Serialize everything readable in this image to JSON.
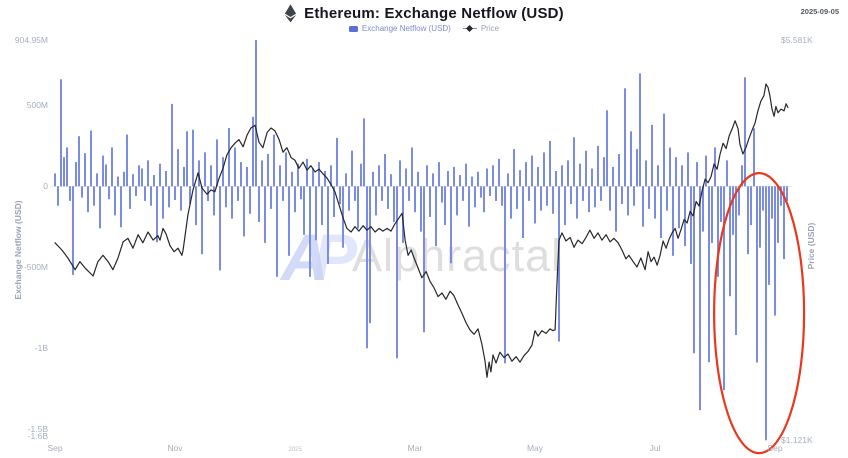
{
  "header": {
    "title": "Ethereum: Exchange Netflow (USD)",
    "date": "2025-09-05"
  },
  "legend": {
    "netflow_label": "Exchange Netflow (USD)",
    "price_label": "Price"
  },
  "watermark": {
    "logo": "AP",
    "text": "Alphractal"
  },
  "axes": {
    "left_title": "Exchange Netflow (USD)",
    "right_title": "Price (USD)",
    "left_ticks": [
      {
        "label": "904.95M",
        "value": 904.95
      },
      {
        "label": "500M",
        "value": 500
      },
      {
        "label": "0",
        "value": 0
      },
      {
        "label": "-500M",
        "value": -500
      },
      {
        "label": "-1B",
        "value": -1000
      },
      {
        "label": "-1.5B",
        "value": -1500
      },
      {
        "label": "-1.6B",
        "value": -1600
      }
    ],
    "right_ticks": [
      {
        "label": "$5.581K",
        "price_k": 5.581
      },
      {
        "label": "$1.121K",
        "price_k": 1.121
      }
    ],
    "x_ticks": [
      {
        "label": "Sep",
        "index": 0
      },
      {
        "label": "Nov",
        "index": 40
      },
      {
        "label": "2025",
        "index": 80,
        "year": true
      },
      {
        "label": "Mar",
        "index": 120
      },
      {
        "label": "May",
        "index": 160
      },
      {
        "label": "Jul",
        "index": 200
      },
      {
        "label": "Sep",
        "index": 240
      }
    ]
  },
  "chart_data": {
    "type": "bar+line",
    "title": "Ethereum: Exchange Netflow (USD)",
    "x_range": [
      "Sep 2024",
      "Sep 2025"
    ],
    "ylim_netflow_musd": [
      -1600,
      904.95
    ],
    "price_axis_kusd": [
      1.121,
      5.581
    ],
    "legend_position": "top-center",
    "grid": false,
    "series": [
      {
        "name": "Exchange Netflow (USD)",
        "type": "bar",
        "unit": "USD millions",
        "color": "#7A8CE3",
        "values": [
          80,
          -120,
          662,
          180,
          240,
          -90,
          -548,
          150,
          310,
          -70,
          205,
          -160,
          345,
          -120,
          80,
          -260,
          190,
          135,
          -80,
          240,
          -180,
          60,
          -253,
          90,
          320,
          -140,
          75,
          -60,
          130,
          110,
          -90,
          160,
          -120,
          70,
          -346,
          140,
          -200,
          95,
          -130,
          510,
          -85,
          230,
          -150,
          120,
          340,
          -110,
          350,
          -240,
          160,
          -420,
          210,
          -90,
          130,
          -180,
          290,
          -520,
          180,
          -130,
          360,
          -200,
          240,
          -90,
          150,
          -310,
          120,
          -170,
          430,
          905,
          -220,
          160,
          -350,
          200,
          -140,
          320,
          -560,
          130,
          -90,
          210,
          -430,
          90,
          -160,
          140,
          -80,
          -300,
          170,
          -560,
          110,
          -334,
          150,
          -240,
          95,
          -480,
          130,
          -190,
          300,
          -110,
          -380,
          80,
          -150,
          220,
          -90,
          -260,
          140,
          420,
          -1002,
          -847,
          90,
          -180,
          130,
          -90,
          200,
          -140,
          75,
          -220,
          -1064,
          160,
          -350,
          110,
          -90,
          240,
          -160,
          90,
          -280,
          -903,
          130,
          -190,
          80,
          -370,
          150,
          -100,
          -240,
          95,
          -476,
          120,
          -180,
          70,
          -90,
          140,
          -250,
          60,
          -130,
          90,
          -70,
          -160,
          110,
          -60,
          130,
          -90,
          170,
          -120,
          -1095,
          80,
          -200,
          230,
          -140,
          100,
          -320,
          150,
          -90,
          190,
          -230,
          120,
          -150,
          210,
          -120,
          280,
          -170,
          95,
          -960,
          130,
          -240,
          160,
          -110,
          303,
          -200,
          140,
          -90,
          220,
          -160,
          110,
          -130,
          250,
          -90,
          180,
          470,
          -150,
          120,
          -280,
          200,
          -110,
          606,
          -180,
          340,
          -120,
          230,
          699,
          -250,
          160,
          -140,
          380,
          -200,
          130,
          -320,
          450,
          -150,
          240,
          -430,
          180,
          -260,
          130,
          -370,
          210,
          -480,
          -1033,
          150,
          -1385,
          -280,
          190,
          -1088,
          -350,
          240,
          -560,
          -220,
          -1261,
          160,
          -680,
          -300,
          -920,
          -180,
          130,
          674,
          -420,
          -240,
          359,
          -1090,
          -380,
          -150,
          -1571,
          -610,
          -200,
          -800,
          -350,
          -120,
          -450,
          -90
        ]
      },
      {
        "name": "Price",
        "type": "line",
        "unit": "USD thousands",
        "color": "#26282c",
        "points": [
          [
            0,
            3.32
          ],
          [
            2.3,
            3.24
          ],
          [
            4.3,
            3.15
          ],
          [
            6.7,
            3.02
          ],
          [
            8.3,
            3.11
          ],
          [
            10,
            3.04
          ],
          [
            12.7,
            2.95
          ],
          [
            14.3,
            3.11
          ],
          [
            16,
            3.18
          ],
          [
            17.7,
            3.11
          ],
          [
            19.3,
            3.02
          ],
          [
            21,
            3.15
          ],
          [
            22.7,
            3.33
          ],
          [
            24.3,
            3.37
          ],
          [
            26,
            3.26
          ],
          [
            27.7,
            3.41
          ],
          [
            29.3,
            3.32
          ],
          [
            31,
            3.44
          ],
          [
            32.7,
            3.35
          ],
          [
            34.3,
            3.4
          ],
          [
            35,
            3.35
          ],
          [
            36,
            3.48
          ],
          [
            37,
            3.42
          ],
          [
            38.3,
            3.29
          ],
          [
            39.7,
            3.22
          ],
          [
            41,
            3.26
          ],
          [
            42.3,
            3.18
          ],
          [
            42.7,
            3.24
          ],
          [
            44.3,
            3.63
          ],
          [
            46,
            3.91
          ],
          [
            47.7,
            4.1
          ],
          [
            49,
            3.93
          ],
          [
            50.7,
            3.86
          ],
          [
            52,
            3.91
          ],
          [
            53.3,
            3.89
          ],
          [
            54.7,
            4.04
          ],
          [
            56,
            4.15
          ],
          [
            57.3,
            4.3
          ],
          [
            58.7,
            4.38
          ],
          [
            60,
            4.43
          ],
          [
            61.3,
            4.47
          ],
          [
            62.7,
            4.39
          ],
          [
            64,
            4.52
          ],
          [
            65.3,
            4.6
          ],
          [
            66.7,
            4.63
          ],
          [
            68,
            4.44
          ],
          [
            69.3,
            4.38
          ],
          [
            70.7,
            4.55
          ],
          [
            72,
            4.6
          ],
          [
            73.3,
            4.57
          ],
          [
            74.7,
            4.47
          ],
          [
            76,
            4.33
          ],
          [
            77.3,
            4.38
          ],
          [
            78.7,
            4.27
          ],
          [
            80,
            4.24
          ],
          [
            81.3,
            4.15
          ],
          [
            82.7,
            4.22
          ],
          [
            84,
            4.13
          ],
          [
            85.3,
            4.18
          ],
          [
            86.7,
            4.11
          ],
          [
            88,
            4.14
          ],
          [
            89.3,
            4.09
          ],
          [
            90.7,
            4.04
          ],
          [
            92,
            3.97
          ],
          [
            93.3,
            3.89
          ],
          [
            94.7,
            3.74
          ],
          [
            96,
            3.6
          ],
          [
            97.3,
            3.48
          ],
          [
            98.7,
            3.44
          ],
          [
            100,
            3.5
          ],
          [
            101.3,
            3.45
          ],
          [
            102.7,
            3.51
          ],
          [
            104,
            3.46
          ],
          [
            105.3,
            3.5
          ],
          [
            106.7,
            3.44
          ],
          [
            108,
            3.48
          ],
          [
            109.3,
            3.45
          ],
          [
            110.7,
            3.48
          ],
          [
            112,
            3.45
          ],
          [
            113.3,
            3.53
          ],
          [
            114.7,
            3.6
          ],
          [
            115.7,
            3.65
          ],
          [
            116.7,
            3.35
          ],
          [
            117.7,
            3.18
          ],
          [
            118.7,
            3.24
          ],
          [
            119.7,
            3.15
          ],
          [
            121,
            3.04
          ],
          [
            122.3,
            2.93
          ],
          [
            123.7,
            3.0
          ],
          [
            125,
            2.89
          ],
          [
            126.3,
            2.82
          ],
          [
            127.7,
            2.72
          ],
          [
            129,
            2.76
          ],
          [
            130.3,
            2.69
          ],
          [
            131.7,
            2.78
          ],
          [
            133,
            2.73
          ],
          [
            134.3,
            2.63
          ],
          [
            135.7,
            2.53
          ],
          [
            137,
            2.43
          ],
          [
            138.3,
            2.35
          ],
          [
            139.7,
            2.3
          ],
          [
            141,
            2.36
          ],
          [
            142.3,
            2.19
          ],
          [
            143.3,
            2.01
          ],
          [
            144,
            1.82
          ],
          [
            144.7,
            1.99
          ],
          [
            145.3,
            1.88
          ],
          [
            146,
            2.07
          ],
          [
            147,
            1.98
          ],
          [
            148.3,
            2.1
          ],
          [
            149.7,
            2.04
          ],
          [
            151,
            2.08
          ],
          [
            152.3,
            2.0
          ],
          [
            153.7,
            2.05
          ],
          [
            155,
            1.99
          ],
          [
            156.3,
            2.06
          ],
          [
            157.7,
            2.11
          ],
          [
            159,
            2.18
          ],
          [
            160,
            2.34
          ],
          [
            161,
            2.28
          ],
          [
            162.3,
            2.34
          ],
          [
            163.7,
            2.31
          ],
          [
            165,
            2.36
          ],
          [
            166,
            2.34
          ],
          [
            166.7,
            2.35
          ],
          [
            167.3,
            2.85
          ],
          [
            168,
            3.35
          ],
          [
            169,
            3.43
          ],
          [
            170.3,
            3.34
          ],
          [
            171.7,
            3.38
          ],
          [
            173,
            3.27
          ],
          [
            174.3,
            3.35
          ],
          [
            175.7,
            3.31
          ],
          [
            177,
            3.38
          ],
          [
            178.3,
            3.46
          ],
          [
            179.7,
            3.37
          ],
          [
            181,
            3.43
          ],
          [
            182.3,
            3.35
          ],
          [
            183.7,
            3.41
          ],
          [
            185,
            3.33
          ],
          [
            186.3,
            3.37
          ],
          [
            187.7,
            3.32
          ],
          [
            189,
            3.24
          ],
          [
            190.3,
            3.14
          ],
          [
            191.3,
            3.18
          ],
          [
            192.7,
            3.11
          ],
          [
            194,
            3.05
          ],
          [
            195.3,
            3.15
          ],
          [
            196.7,
            3.02
          ],
          [
            197.7,
            3.22
          ],
          [
            198.7,
            3.11
          ],
          [
            199.7,
            3.16
          ],
          [
            200.7,
            3.07
          ],
          [
            201.7,
            3.18
          ],
          [
            202.7,
            3.34
          ],
          [
            203.7,
            3.26
          ],
          [
            204.7,
            3.36
          ],
          [
            205.7,
            3.43
          ],
          [
            206.7,
            3.48
          ],
          [
            207.7,
            3.37
          ],
          [
            208.7,
            3.47
          ],
          [
            209.7,
            3.58
          ],
          [
            210.7,
            3.54
          ],
          [
            211.7,
            3.67
          ],
          [
            212.7,
            3.62
          ],
          [
            213.7,
            3.78
          ],
          [
            214.7,
            3.73
          ],
          [
            215.7,
            3.9
          ],
          [
            216.7,
            4.03
          ],
          [
            217.7,
            3.99
          ],
          [
            218.7,
            4.06
          ],
          [
            219.7,
            4.2
          ],
          [
            220.7,
            4.14
          ],
          [
            221.7,
            4.31
          ],
          [
            222.7,
            4.43
          ],
          [
            223.7,
            4.37
          ],
          [
            224.7,
            4.51
          ],
          [
            225.7,
            4.59
          ],
          [
            226.7,
            4.68
          ],
          [
            227.7,
            4.59
          ],
          [
            228.3,
            4.42
          ],
          [
            229.3,
            4.31
          ],
          [
            230.3,
            4.38
          ],
          [
            231.3,
            4.48
          ],
          [
            232.3,
            4.57
          ],
          [
            233.3,
            4.65
          ],
          [
            234.3,
            4.79
          ],
          [
            235.3,
            4.9
          ],
          [
            236.3,
            4.96
          ],
          [
            237,
            5.09
          ],
          [
            237.7,
            5.05
          ],
          [
            238.3,
            4.96
          ],
          [
            239,
            4.81
          ],
          [
            239.7,
            4.73
          ],
          [
            240.3,
            4.84
          ],
          [
            241,
            4.77
          ],
          [
            242,
            4.81
          ],
          [
            243,
            4.79
          ],
          [
            243.7,
            4.87
          ],
          [
            244.3,
            4.83
          ]
        ]
      }
    ],
    "annotation": {
      "shape": "ellipse",
      "color": "#E8391D",
      "center_index": 234.7,
      "center_netflow_musd": -784,
      "radius_index": 15,
      "radius_musd": 866
    }
  }
}
